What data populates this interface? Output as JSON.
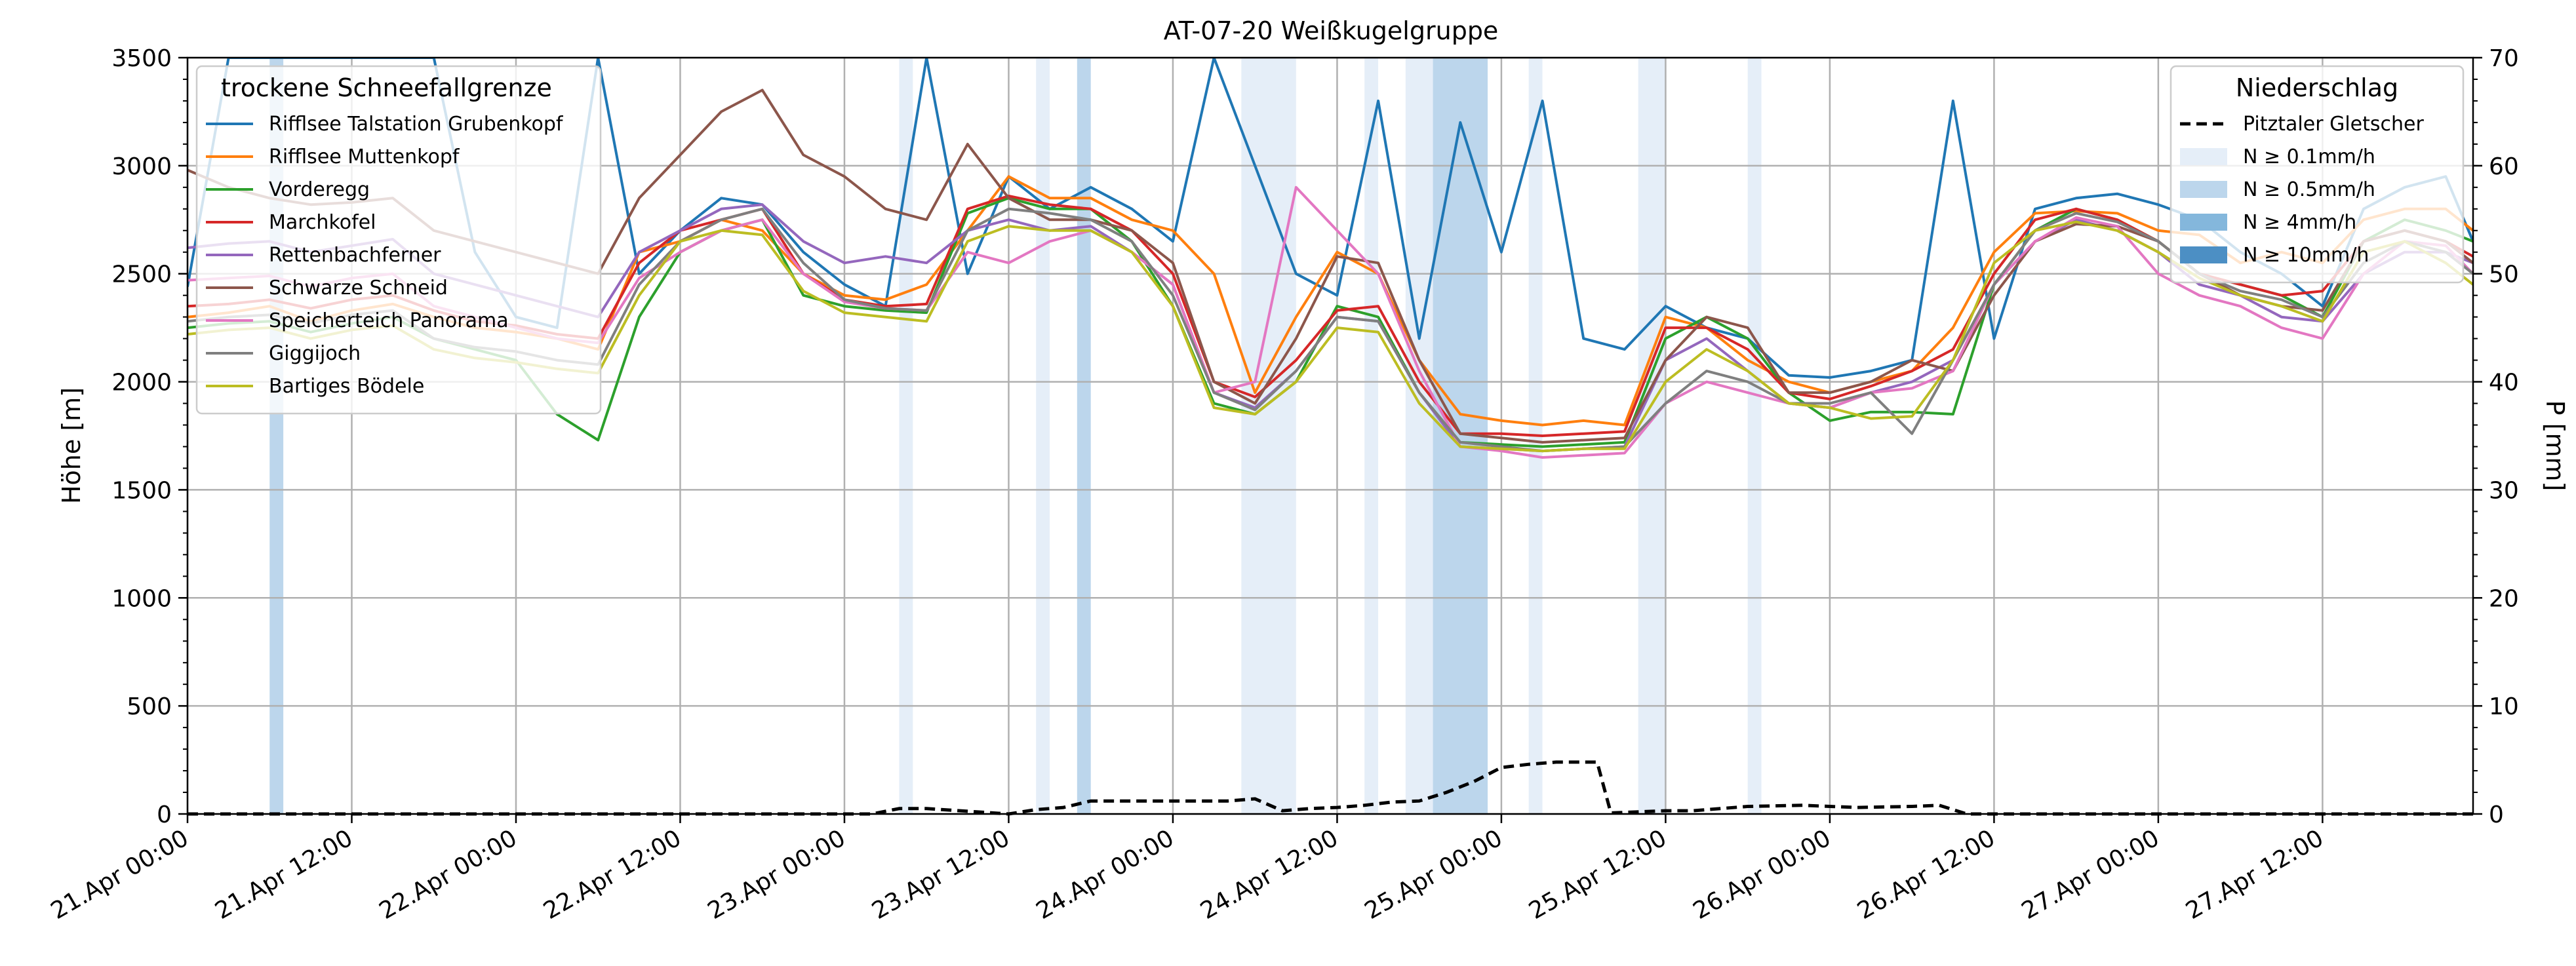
{
  "chart_data": {
    "type": "line",
    "title": "AT-07-20 Weißkugelgruppe",
    "ylabel_left": "Höhe [m]",
    "ylabel_right": "P [mm]",
    "xlabel": "",
    "ylim_left": [
      0,
      3500
    ],
    "ylim_right": [
      0,
      70
    ],
    "xlim_hours": [
      0,
      167
    ],
    "x_ticks": [
      {
        "hour": 0,
        "label": "21.Apr 00:00"
      },
      {
        "hour": 12,
        "label": "21.Apr 12:00"
      },
      {
        "hour": 24,
        "label": "22.Apr 00:00"
      },
      {
        "hour": 36,
        "label": "22.Apr 12:00"
      },
      {
        "hour": 48,
        "label": "23.Apr 00:00"
      },
      {
        "hour": 60,
        "label": "23.Apr 12:00"
      },
      {
        "hour": 72,
        "label": "24.Apr 00:00"
      },
      {
        "hour": 84,
        "label": "24.Apr 12:00"
      },
      {
        "hour": 96,
        "label": "25.Apr 00:00"
      },
      {
        "hour": 108,
        "label": "25.Apr 12:00"
      },
      {
        "hour": 120,
        "label": "26.Apr 00:00"
      },
      {
        "hour": 132,
        "label": "26.Apr 12:00"
      },
      {
        "hour": 144,
        "label": "27.Apr 00:00"
      },
      {
        "hour": 156,
        "label": "27.Apr 12:00"
      }
    ],
    "y_ticks_left": [
      0,
      500,
      1000,
      1500,
      2000,
      2500,
      3000,
      3500
    ],
    "y_ticks_right": [
      0,
      10,
      20,
      30,
      40,
      50,
      60,
      70
    ],
    "grid": true,
    "legend_left": {
      "title": "trockene Schneefallgrenze",
      "placement": "top-left"
    },
    "legend_right": {
      "title": "Niederschlag",
      "placement": "top-right",
      "line_label": "Pitztaler Gletscher",
      "band_labels": [
        {
          "label": "N ≥ 0.1mm/h",
          "color": "#e5eef8"
        },
        {
          "label": "N ≥ 0.5mm/h",
          "color": "#bcd6ec"
        },
        {
          "label": "N ≥ 4mm/h",
          "color": "#84b7dc"
        },
        {
          "label": "N ≥ 10mm/h",
          "color": "#4c8fc4"
        }
      ]
    },
    "precip_bands": [
      {
        "start": 6,
        "end": 7,
        "level": 1
      },
      {
        "start": 52,
        "end": 53,
        "level": 0
      },
      {
        "start": 62,
        "end": 63,
        "level": 0
      },
      {
        "start": 65,
        "end": 66,
        "level": 1
      },
      {
        "start": 77,
        "end": 81,
        "level": 0
      },
      {
        "start": 86,
        "end": 87,
        "level": 0
      },
      {
        "start": 89,
        "end": 91,
        "level": 0
      },
      {
        "start": 91,
        "end": 95,
        "level": 1
      },
      {
        "start": 98,
        "end": 99,
        "level": 0
      },
      {
        "start": 106,
        "end": 108,
        "level": 0
      },
      {
        "start": 114,
        "end": 115,
        "level": 0
      }
    ],
    "precip_cumulative": {
      "name": "Pitztaler Gletscher",
      "color": "#000000",
      "x": [
        0,
        50,
        52,
        54,
        60,
        62,
        64,
        66,
        72,
        76,
        78,
        80,
        82,
        84,
        86,
        88,
        90,
        92,
        94,
        96,
        98,
        100,
        102,
        103,
        104,
        108,
        110,
        114,
        118,
        120,
        122,
        126,
        128,
        130,
        167
      ],
      "y": [
        0,
        0,
        0.5,
        0.5,
        0,
        0.4,
        0.6,
        1.2,
        1.2,
        1.2,
        1.4,
        0.3,
        0.5,
        0.6,
        0.8,
        1.1,
        1.2,
        2,
        3,
        4.3,
        4.6,
        4.8,
        4.8,
        4.8,
        0.1,
        0.3,
        0.3,
        0.7,
        0.8,
        0.7,
        0.6,
        0.7,
        0.8,
        0,
        0
      ]
    },
    "x_sample_hours": [
      0,
      3,
      6,
      9,
      12,
      15,
      18,
      21,
      24,
      27,
      30,
      33,
      36,
      39,
      42,
      45,
      48,
      51,
      54,
      57,
      60,
      63,
      66,
      69,
      72,
      75,
      78,
      81,
      84,
      87,
      90,
      93,
      96,
      99,
      102,
      105,
      108,
      111,
      114,
      117,
      120,
      123,
      126,
      129,
      132,
      135,
      138,
      141,
      144,
      147,
      150,
      153,
      156,
      159,
      162,
      165,
      167
    ],
    "series": [
      {
        "name": "Rifflsee Talstation Grubenkopf",
        "color": "#1f77b4",
        "values": [
          2440,
          3500,
          3500,
          3500,
          3500,
          3500,
          3500,
          2600,
          2300,
          2250,
          3500,
          2500,
          2700,
          2850,
          2820,
          2600,
          2450,
          2350,
          3500,
          2500,
          2950,
          2800,
          2900,
          2800,
          2650,
          3500,
          3000,
          2500,
          2400,
          3300,
          2200,
          3200,
          2600,
          3300,
          2200,
          2150,
          2350,
          2250,
          2200,
          2030,
          2020,
          2050,
          2100,
          3300,
          2200,
          2800,
          2850,
          2870,
          2820,
          2750,
          2600,
          2500,
          2350,
          2800,
          2900,
          2950,
          2650
        ]
      },
      {
        "name": "Rifflsee Muttenkopf",
        "color": "#ff7f0e",
        "values": [
          2300,
          2320,
          2350,
          2280,
          2330,
          2360,
          2300,
          2250,
          2230,
          2200,
          2150,
          2600,
          2650,
          2750,
          2700,
          2500,
          2400,
          2380,
          2450,
          2700,
          2950,
          2850,
          2850,
          2750,
          2700,
          2500,
          1950,
          2300,
          2600,
          2500,
          2100,
          1850,
          1820,
          1800,
          1820,
          1800,
          2300,
          2250,
          2100,
          2000,
          1950,
          2000,
          2050,
          2250,
          2600,
          2780,
          2790,
          2780,
          2700,
          2680,
          2550,
          2600,
          2550,
          2750,
          2800,
          2800,
          2700
        ]
      },
      {
        "name": "Vorderegg",
        "color": "#2ca02c",
        "values": [
          2250,
          2270,
          2280,
          2230,
          2270,
          2300,
          2200,
          2150,
          2100,
          1850,
          1730,
          2300,
          2600,
          2700,
          2750,
          2400,
          2350,
          2330,
          2320,
          2780,
          2850,
          2800,
          2800,
          2650,
          2350,
          1900,
          1850,
          2000,
          2350,
          2300,
          1950,
          1720,
          1710,
          1700,
          1710,
          1720,
          2200,
          2300,
          2200,
          1950,
          1820,
          1860,
          1860,
          1850,
          2450,
          2700,
          2800,
          2750,
          2650,
          2500,
          2450,
          2400,
          2300,
          2650,
          2750,
          2700,
          2650
        ]
      },
      {
        "name": "Marchkofel",
        "color": "#d62728",
        "values": [
          2350,
          2360,
          2380,
          2340,
          2380,
          2400,
          2330,
          2280,
          2260,
          2220,
          2200,
          2550,
          2700,
          2750,
          2800,
          2500,
          2380,
          2350,
          2360,
          2800,
          2860,
          2820,
          2800,
          2700,
          2500,
          2000,
          1930,
          2100,
          2330,
          2350,
          2000,
          1760,
          1760,
          1750,
          1760,
          1770,
          2250,
          2250,
          2150,
          1950,
          1920,
          1980,
          2050,
          2150,
          2500,
          2750,
          2800,
          2750,
          2650,
          2500,
          2450,
          2400,
          2420,
          2650,
          2700,
          2650,
          2580
        ]
      },
      {
        "name": "Rettenbachferner",
        "color": "#9467bd",
        "values": [
          2620,
          2640,
          2650,
          2600,
          2630,
          2660,
          2500,
          2450,
          2400,
          2350,
          2300,
          2600,
          2700,
          2800,
          2820,
          2650,
          2550,
          2580,
          2550,
          2700,
          2750,
          2700,
          2720,
          2600,
          2450,
          1950,
          1880,
          2050,
          2300,
          2280,
          1950,
          1700,
          1690,
          1680,
          1690,
          1700,
          2100,
          2200,
          2050,
          1900,
          1880,
          1950,
          2000,
          2100,
          2450,
          2650,
          2750,
          2700,
          2600,
          2450,
          2400,
          2300,
          2280,
          2500,
          2600,
          2600,
          2550
        ]
      },
      {
        "name": "Schwarze Schneid",
        "color": "#8c564b",
        "values": [
          2980,
          2900,
          2850,
          2820,
          2830,
          2850,
          2700,
          2650,
          2600,
          2550,
          2500,
          2850,
          3050,
          3250,
          3350,
          3050,
          2950,
          2800,
          2750,
          3100,
          2850,
          2750,
          2750,
          2700,
          2550,
          2000,
          1900,
          2200,
          2580,
          2550,
          2100,
          1760,
          1740,
          1720,
          1730,
          1740,
          2100,
          2300,
          2250,
          1950,
          1950,
          2000,
          2100,
          2050,
          2400,
          2650,
          2730,
          2720,
          2650,
          2500,
          2400,
          2350,
          2330,
          2650,
          2700,
          2650,
          2550
        ]
      },
      {
        "name": "Speicherteich Panorama",
        "color": "#e377c2",
        "values": [
          2470,
          2480,
          2490,
          2440,
          2480,
          2500,
          2350,
          2300,
          2250,
          2200,
          2180,
          2480,
          2600,
          2700,
          2750,
          2500,
          2370,
          2340,
          2330,
          2600,
          2550,
          2650,
          2700,
          2600,
          2450,
          1950,
          2000,
          2900,
          2700,
          2500,
          2050,
          1700,
          1680,
          1650,
          1660,
          1670,
          1900,
          2000,
          1950,
          1900,
          1880,
          1950,
          1970,
          2050,
          2450,
          2650,
          2760,
          2720,
          2500,
          2400,
          2350,
          2250,
          2200,
          2500,
          2650,
          2630,
          2500
        ]
      },
      {
        "name": "Giggijoch",
        "color": "#7f7f7f",
        "values": [
          2280,
          2300,
          2310,
          2270,
          2310,
          2330,
          2200,
          2160,
          2140,
          2100,
          2080,
          2450,
          2650,
          2750,
          2800,
          2550,
          2380,
          2340,
          2330,
          2700,
          2800,
          2780,
          2750,
          2650,
          2400,
          1950,
          1870,
          2050,
          2300,
          2280,
          1950,
          1720,
          1700,
          1680,
          1690,
          1700,
          1900,
          2050,
          2000,
          1900,
          1900,
          1950,
          1760,
          2100,
          2450,
          2700,
          2780,
          2740,
          2650,
          2500,
          2420,
          2380,
          2300,
          2550,
          2650,
          2600,
          2500
        ]
      },
      {
        "name": "Bartiges Bödele",
        "color": "#bcbd22",
        "values": [
          2220,
          2240,
          2250,
          2200,
          2240,
          2260,
          2150,
          2110,
          2090,
          2060,
          2040,
          2400,
          2650,
          2700,
          2680,
          2420,
          2320,
          2300,
          2280,
          2650,
          2720,
          2700,
          2700,
          2600,
          2350,
          1880,
          1850,
          2000,
          2250,
          2230,
          1900,
          1700,
          1690,
          1680,
          1690,
          1690,
          2000,
          2150,
          2050,
          1900,
          1880,
          1830,
          1840,
          2100,
          2550,
          2700,
          2740,
          2700,
          2600,
          2480,
          2400,
          2350,
          2280,
          2600,
          2650,
          2550,
          2450
        ]
      }
    ]
  }
}
